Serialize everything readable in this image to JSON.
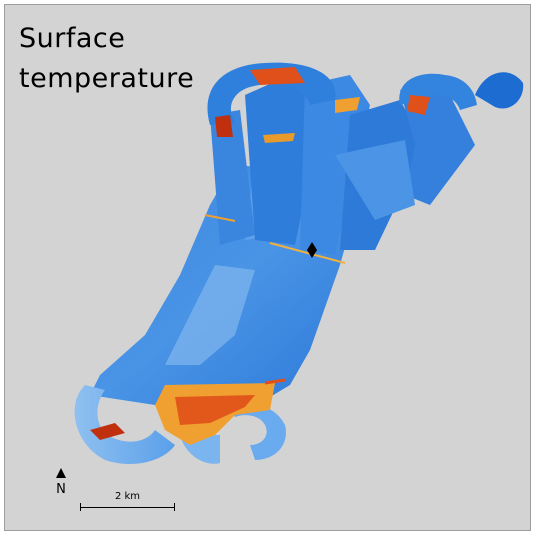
{
  "map": {
    "title_line1": "Surface",
    "title_line2": "temperature",
    "north_label": "N",
    "scale_label": "2 km",
    "colors": {
      "background": "#d3d3d3",
      "cold": "#1f6fd8",
      "cool": "#4f9ae8",
      "pale": "#9cc7f0",
      "warm": "#f0a030",
      "hot": "#e0501a",
      "hottest": "#c0300e"
    },
    "icons": [
      "north-arrow-icon",
      "point-marker-icon"
    ]
  }
}
